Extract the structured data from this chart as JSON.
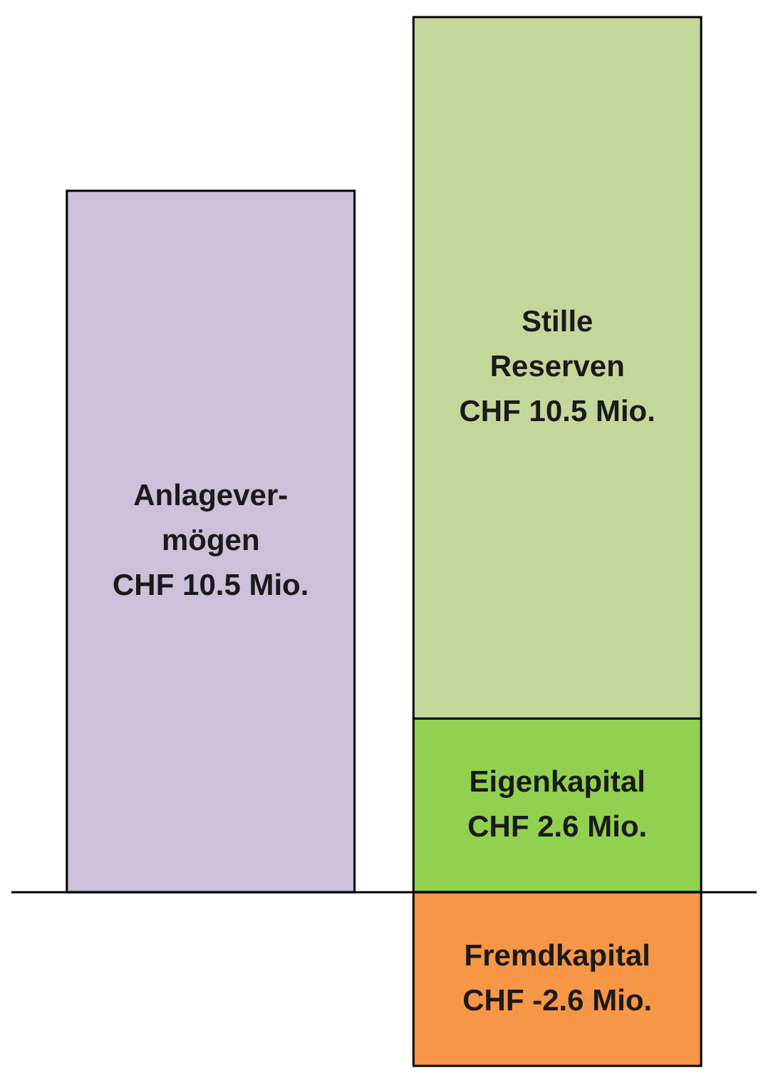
{
  "chart_data": {
    "type": "bar",
    "stacked": true,
    "categories": [
      null,
      null
    ],
    "legend": false,
    "series": [
      {
        "name": "Anlagever-mögen",
        "color": "#ccc0da",
        "values": [
          10.5,
          null
        ],
        "value_labels": [
          "CHF 10.5 Mio.",
          null
        ]
      },
      {
        "name": "Eigenkapital",
        "color": "#92d050",
        "values": [
          null,
          2.6
        ],
        "value_labels": [
          null,
          "CHF 2.6 Mio."
        ]
      },
      {
        "name": "Stille Reserven",
        "color": "#c4d79b",
        "values": [
          null,
          10.5
        ],
        "value_labels": [
          null,
          "CHF 10.5 Mio."
        ]
      },
      {
        "name": "Fremdkapital",
        "color": "#f79646",
        "values": [
          null,
          -2.6
        ],
        "value_labels": [
          null,
          "CHF -2.6 Mio."
        ]
      }
    ]
  }
}
